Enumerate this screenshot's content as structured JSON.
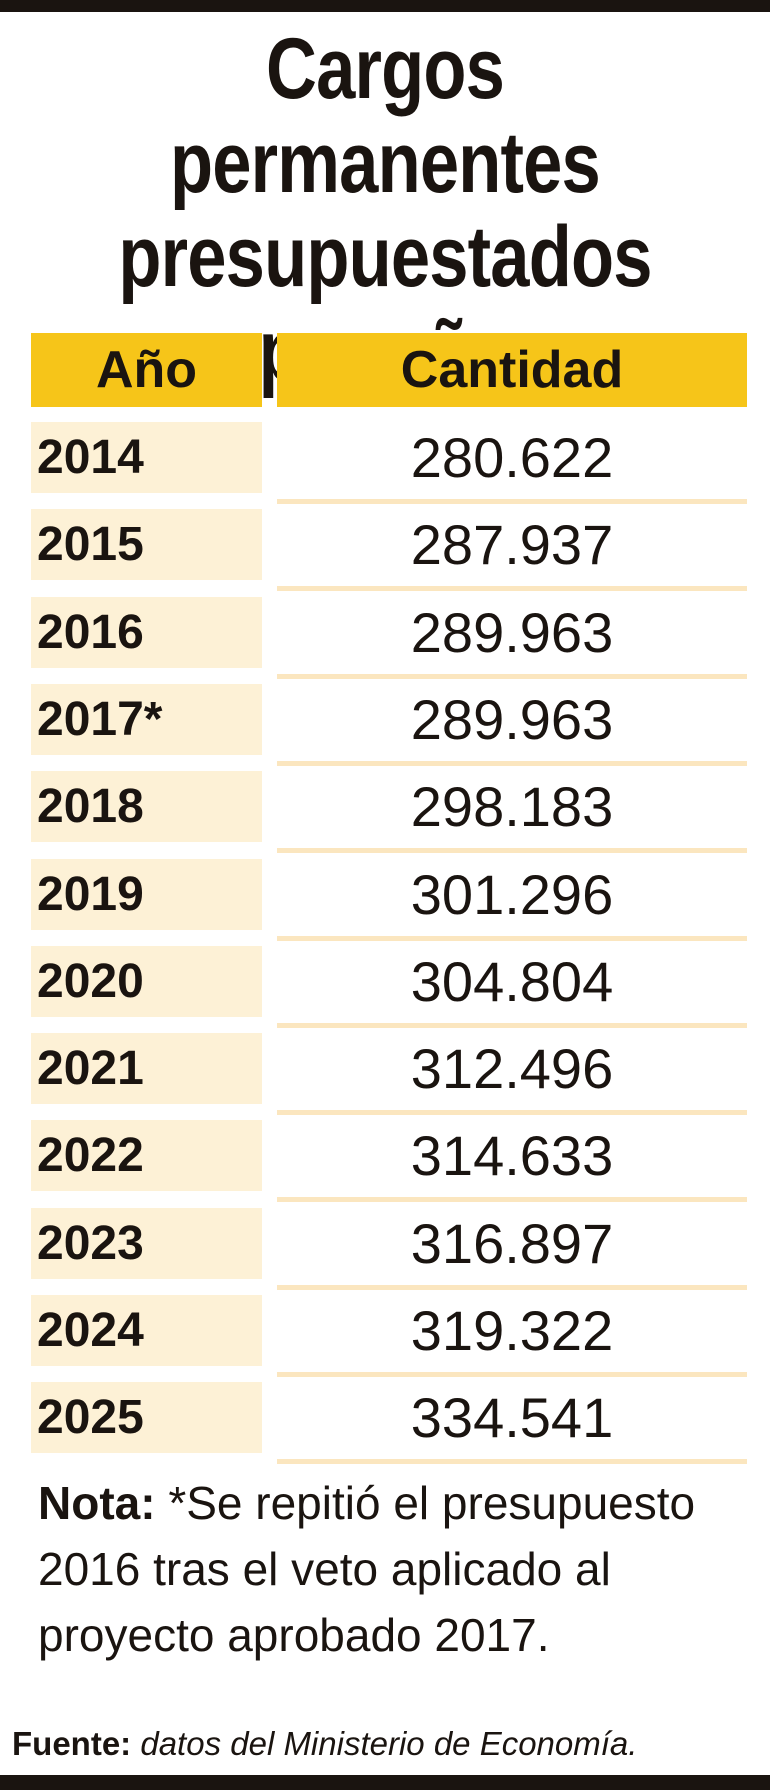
{
  "title": [
    "Cargos permanentes",
    "presupuestados",
    "por año"
  ],
  "table": {
    "headers": [
      "Año",
      "Cantidad"
    ],
    "rows": [
      [
        "2014",
        "280.622"
      ],
      [
        "2015",
        "287.937"
      ],
      [
        "2016",
        "289.963"
      ],
      [
        "2017*",
        "289.963"
      ],
      [
        "2018",
        "298.183"
      ],
      [
        "2019",
        "301.296"
      ],
      [
        "2020",
        "304.804"
      ],
      [
        "2021",
        "312.496"
      ],
      [
        "2022",
        "314.633"
      ],
      [
        "2023",
        "316.897"
      ],
      [
        "2024",
        "319.322"
      ],
      [
        "2025",
        "334.541"
      ]
    ]
  },
  "note": {
    "label": "Nota:",
    "text": "*Se repitió el presupuesto 2016 tras el veto aplicado al proyecto aprobado 2017."
  },
  "source": {
    "label": "Fuente:",
    "text": "datos del Ministerio de Economía."
  }
}
